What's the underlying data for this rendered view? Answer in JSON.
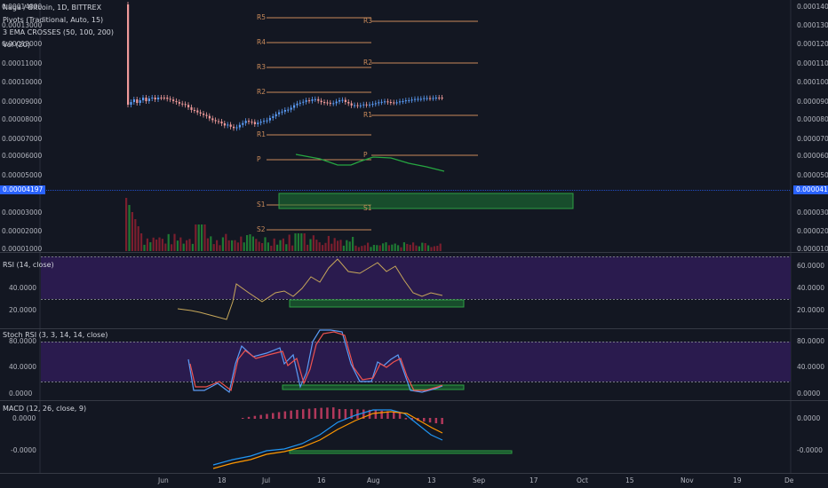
{
  "legend": {
    "symbol": "Naga / Bitcoin, 1D, BITTREX",
    "pivots": "Pivots (Traditional, Auto, 15)",
    "ema": "3 EMA CROSSES (50, 100, 200)",
    "vol": "Vol (20)"
  },
  "price_axis": {
    "labels": [
      "0.00014000",
      "0.00013000",
      "0.00012000",
      "0.00011000",
      "0.00010000",
      "0.00009000",
      "0.00008000",
      "0.00007000",
      "0.00006000",
      "0.00005000",
      "0.00003000",
      "0.00002000",
      "0.00001000"
    ],
    "current_price": "0.00004197"
  },
  "pivots": {
    "period1": [
      "R5",
      "R4",
      "R3",
      "R2",
      "P",
      "R1",
      "S1",
      "S2"
    ],
    "period2": [
      "R3",
      "R2",
      "R1",
      "P",
      "S1"
    ]
  },
  "rsi": {
    "title": "RSI (14, close)",
    "labels": [
      "60.0000",
      "40.0000",
      "20.0000"
    ]
  },
  "stoch": {
    "title": "Stoch RSI (3, 3, 14, 14, close)",
    "labels": [
      "80.0000",
      "40.0000",
      "0.0000"
    ]
  },
  "macd": {
    "title": "MACD (12, 26, close, 9)",
    "labels": [
      "0.0000",
      "-0.0000"
    ]
  },
  "time_axis": [
    "Jun",
    "18",
    "Jul",
    "16",
    "Aug",
    "13",
    "Sep",
    "17",
    "Oct",
    "15",
    "Nov",
    "19",
    "De"
  ],
  "colors": {
    "background": "#131722",
    "up": "#5b9cf6",
    "down": "#ef9a9a",
    "pivot": "#c98a5a",
    "ema": "#26a641",
    "highlight": "#1e7a34",
    "rsi_band": "#2a1b4e",
    "macd_line": "#2196f3",
    "signal_line": "#ff9800"
  },
  "chart_data": [
    {
      "type": "candlestick",
      "title": "Naga / Bitcoin, 1D, BITTREX",
      "y_axis_ticks": [
        1e-05,
        2e-05,
        3e-05,
        5e-05,
        6e-05,
        7e-05,
        8e-05,
        9e-05,
        0.0001,
        0.00011,
        0.00012,
        0.00013,
        0.00014
      ],
      "last_price": 4.197e-05,
      "x_ticks": [
        "Jun",
        "18",
        "Jul",
        "16",
        "Aug",
        "13",
        "Sep",
        "17",
        "Oct",
        "15",
        "Nov",
        "19",
        "De"
      ]
    },
    {
      "type": "line",
      "title": "RSI (14, close)",
      "y_ticks": [
        20,
        40,
        60
      ]
    },
    {
      "type": "line",
      "title": "Stoch RSI (3, 3, 14, 14, close)",
      "y_ticks": [
        0,
        40,
        80
      ]
    },
    {
      "type": "line",
      "title": "MACD (12, 26, close, 9)",
      "y_ticks": [
        0
      ]
    }
  ]
}
